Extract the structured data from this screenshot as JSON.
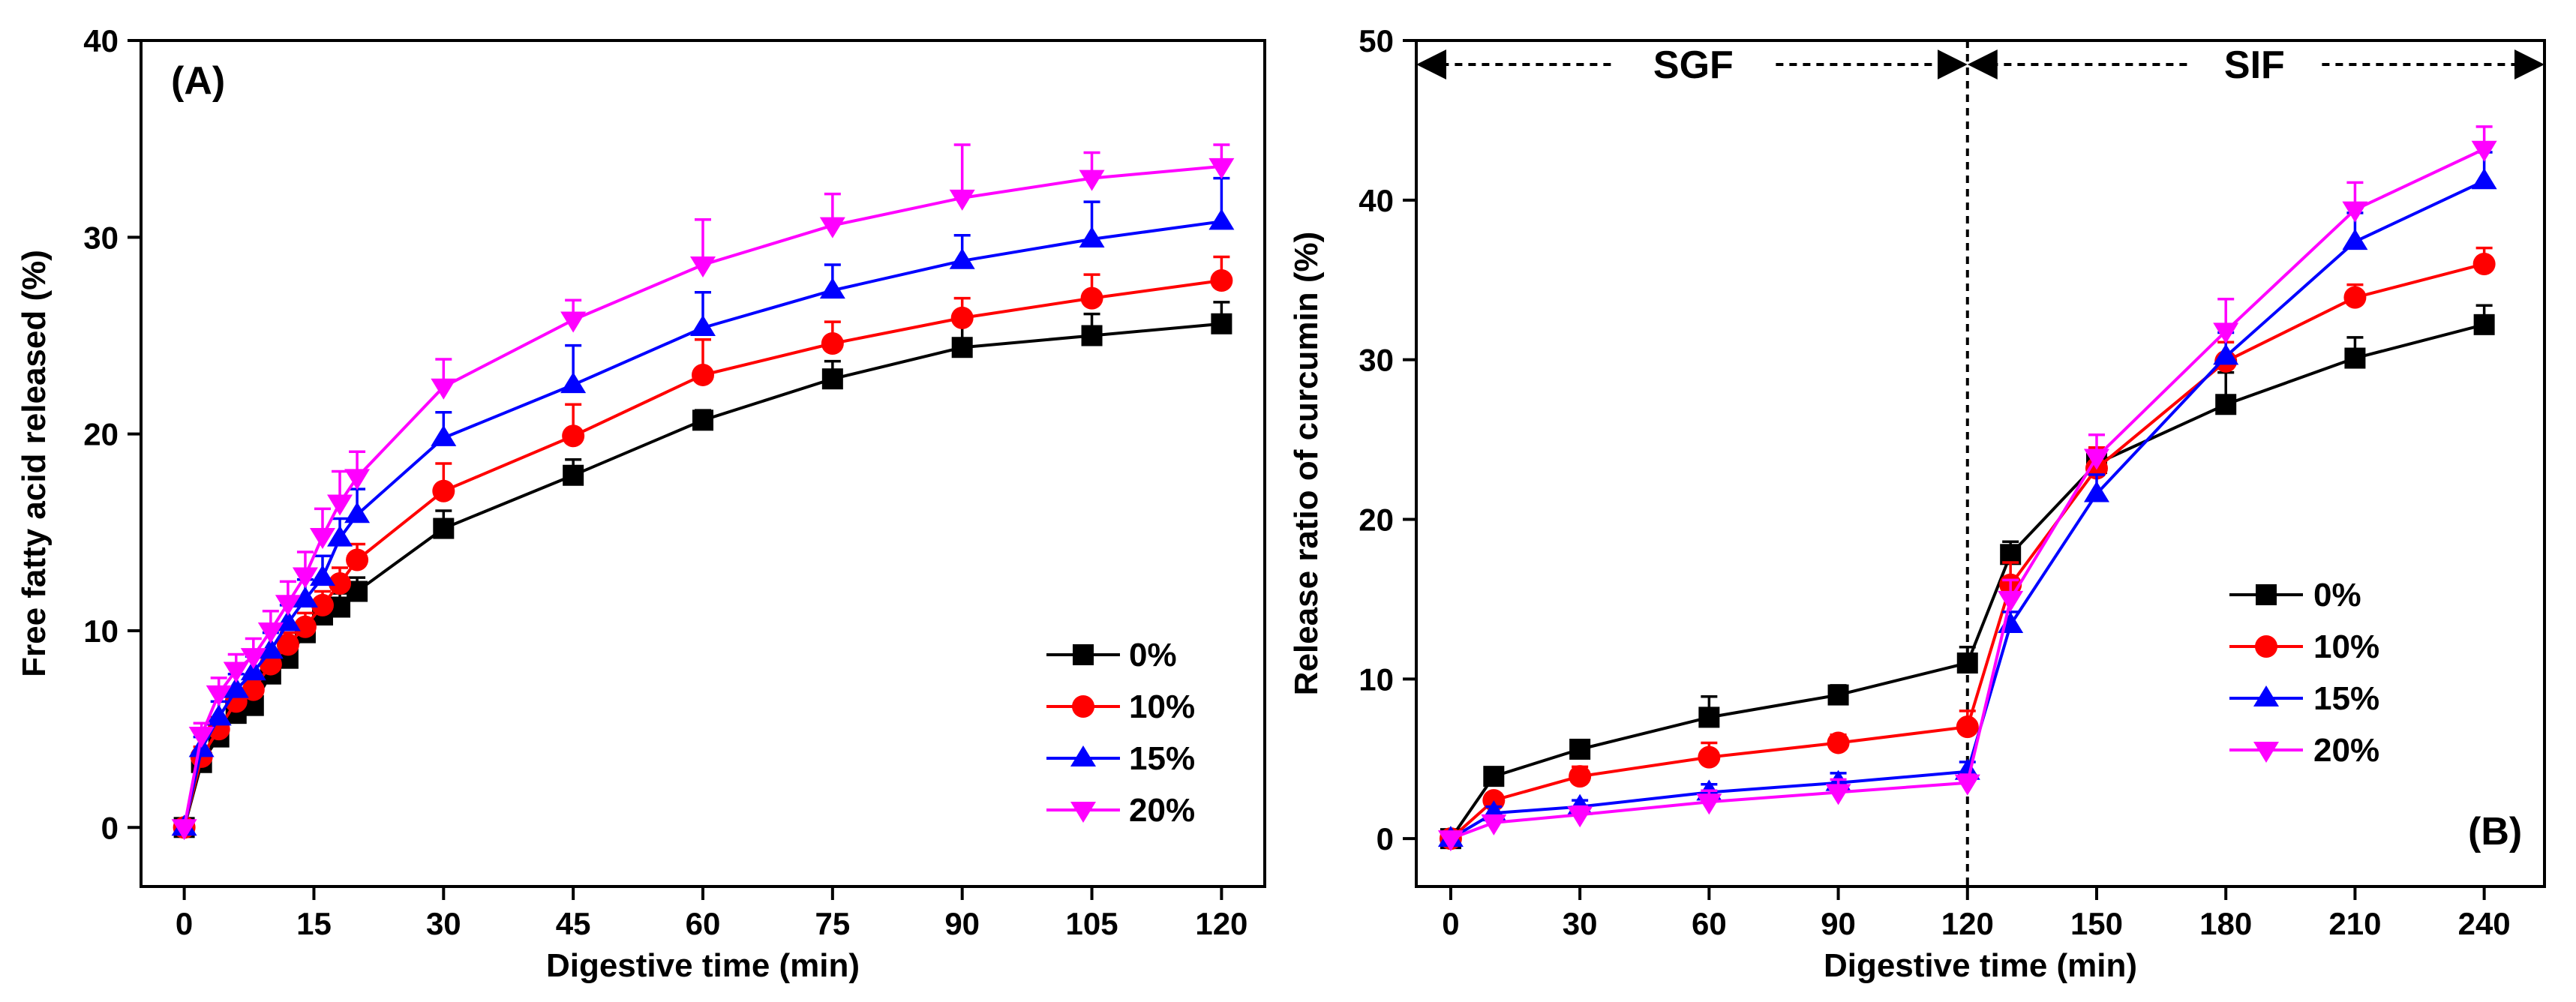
{
  "chart_data": [
    {
      "id": "A",
      "type": "line",
      "panel_label": "(A)",
      "xlabel": "Digestive time (min)",
      "ylabel": "Free fatty acid released (%)",
      "xlim": [
        -5,
        125
      ],
      "ylim": [
        -3,
        40
      ],
      "xticks": [
        0,
        15,
        30,
        45,
        60,
        75,
        90,
        105,
        120
      ],
      "yticks": [
        0,
        10,
        20,
        30,
        40
      ],
      "legend_position": "lower-right",
      "x": [
        0,
        2,
        4,
        6,
        8,
        10,
        12,
        14,
        16,
        18,
        20,
        30,
        45,
        60,
        75,
        90,
        105,
        120
      ],
      "series": [
        {
          "name": "0%",
          "color": "#000000",
          "marker": "square",
          "values": [
            0,
            3.3,
            4.6,
            5.8,
            6.2,
            7.8,
            8.6,
            9.9,
            10.8,
            11.2,
            12.0,
            15.2,
            17.9,
            20.7,
            22.8,
            24.4,
            25.0,
            25.6
          ],
          "errors": [
            0.3,
            0.5,
            0.6,
            0.5,
            0.5,
            0.6,
            0.6,
            0.6,
            0.6,
            0.7,
            0.7,
            0.9,
            0.8,
            0.5,
            0.9,
            1.8,
            1.1,
            1.1
          ]
        },
        {
          "name": "10%",
          "color": "#ff0000",
          "marker": "circle",
          "values": [
            0,
            3.6,
            5.0,
            6.4,
            7.0,
            8.3,
            9.3,
            10.2,
            11.3,
            12.4,
            13.6,
            17.1,
            19.9,
            23.0,
            24.6,
            25.9,
            26.9,
            27.8
          ],
          "errors": [
            0.3,
            0.5,
            0.6,
            0.6,
            0.6,
            0.7,
            0.6,
            0.7,
            0.7,
            0.8,
            0.8,
            1.4,
            1.6,
            1.8,
            1.1,
            1.0,
            1.2,
            1.2
          ]
        },
        {
          "name": "15%",
          "color": "#0000ff",
          "marker": "triangle-up",
          "values": [
            0,
            4.0,
            5.6,
            7.0,
            7.9,
            9.0,
            10.4,
            11.6,
            12.7,
            14.7,
            15.9,
            19.8,
            22.5,
            25.4,
            27.3,
            28.8,
            29.9,
            30.8
          ],
          "errors": [
            0.3,
            0.6,
            0.8,
            0.8,
            0.8,
            0.9,
            0.9,
            1.0,
            1.1,
            1.0,
            1.3,
            1.3,
            2.0,
            1.8,
            1.3,
            1.3,
            1.9,
            2.2
          ]
        },
        {
          "name": "20%",
          "color": "#ff00ff",
          "marker": "triangle-down",
          "values": [
            0,
            4.7,
            6.8,
            8.0,
            8.7,
            10.0,
            11.4,
            12.8,
            14.8,
            16.5,
            17.8,
            22.4,
            25.8,
            28.6,
            30.6,
            32.0,
            33.0,
            33.6
          ],
          "errors": [
            0.3,
            0.6,
            0.8,
            0.8,
            0.9,
            1.0,
            1.1,
            1.2,
            1.4,
            1.6,
            1.3,
            1.4,
            1.0,
            2.3,
            1.6,
            2.7,
            1.3,
            1.1
          ]
        }
      ]
    },
    {
      "id": "B",
      "type": "line",
      "panel_label": "(B)",
      "xlabel": "Digestive time (min)",
      "ylabel": "Release ratio of curcumin (%)",
      "xlim": [
        -8,
        254
      ],
      "ylim": [
        -3,
        50
      ],
      "xticks": [
        0,
        30,
        60,
        90,
        120,
        150,
        180,
        210,
        240
      ],
      "yticks": [
        0,
        10,
        20,
        30,
        40,
        50
      ],
      "legend_position": "center-right",
      "annotations": {
        "left_phase": "SGF",
        "right_phase": "SIF",
        "divider_x": 120
      },
      "x": [
        0,
        10,
        30,
        60,
        90,
        120,
        130,
        150,
        180,
        210,
        240
      ],
      "series": [
        {
          "name": "0%",
          "color": "#000000",
          "marker": "square",
          "values": [
            0,
            3.9,
            5.6,
            7.6,
            9.0,
            11.0,
            17.8,
            23.5,
            27.2,
            30.1,
            32.2
          ],
          "errors": [
            0.3,
            0.4,
            0.5,
            1.3,
            0.6,
            1.0,
            0.8,
            1.0,
            2.0,
            1.3,
            1.2
          ]
        },
        {
          "name": "10%",
          "color": "#ff0000",
          "marker": "circle",
          "values": [
            0,
            2.4,
            3.9,
            5.1,
            6.0,
            7.0,
            15.9,
            23.2,
            29.9,
            33.9,
            36.0
          ],
          "errors": [
            0.3,
            0.4,
            0.6,
            0.9,
            0.5,
            1.0,
            1.4,
            1.3,
            1.2,
            0.8,
            1.0
          ]
        },
        {
          "name": "15%",
          "color": "#0000ff",
          "marker": "triangle-up",
          "values": [
            0,
            1.6,
            2.0,
            2.9,
            3.5,
            4.2,
            13.4,
            21.6,
            30.2,
            37.4,
            41.2
          ],
          "errors": [
            0.3,
            0.4,
            0.4,
            0.5,
            0.6,
            0.6,
            0.8,
            1.2,
            1.5,
            1.8,
            1.8
          ]
        },
        {
          "name": "20%",
          "color": "#ff00ff",
          "marker": "triangle-down",
          "values": [
            0,
            1.0,
            1.5,
            2.3,
            2.9,
            3.5,
            15.0,
            23.9,
            31.8,
            39.4,
            43.2
          ],
          "errors": [
            0.3,
            0.4,
            0.5,
            0.7,
            0.8,
            0.5,
            1.2,
            1.4,
            2.0,
            1.7,
            1.4
          ]
        }
      ]
    }
  ]
}
